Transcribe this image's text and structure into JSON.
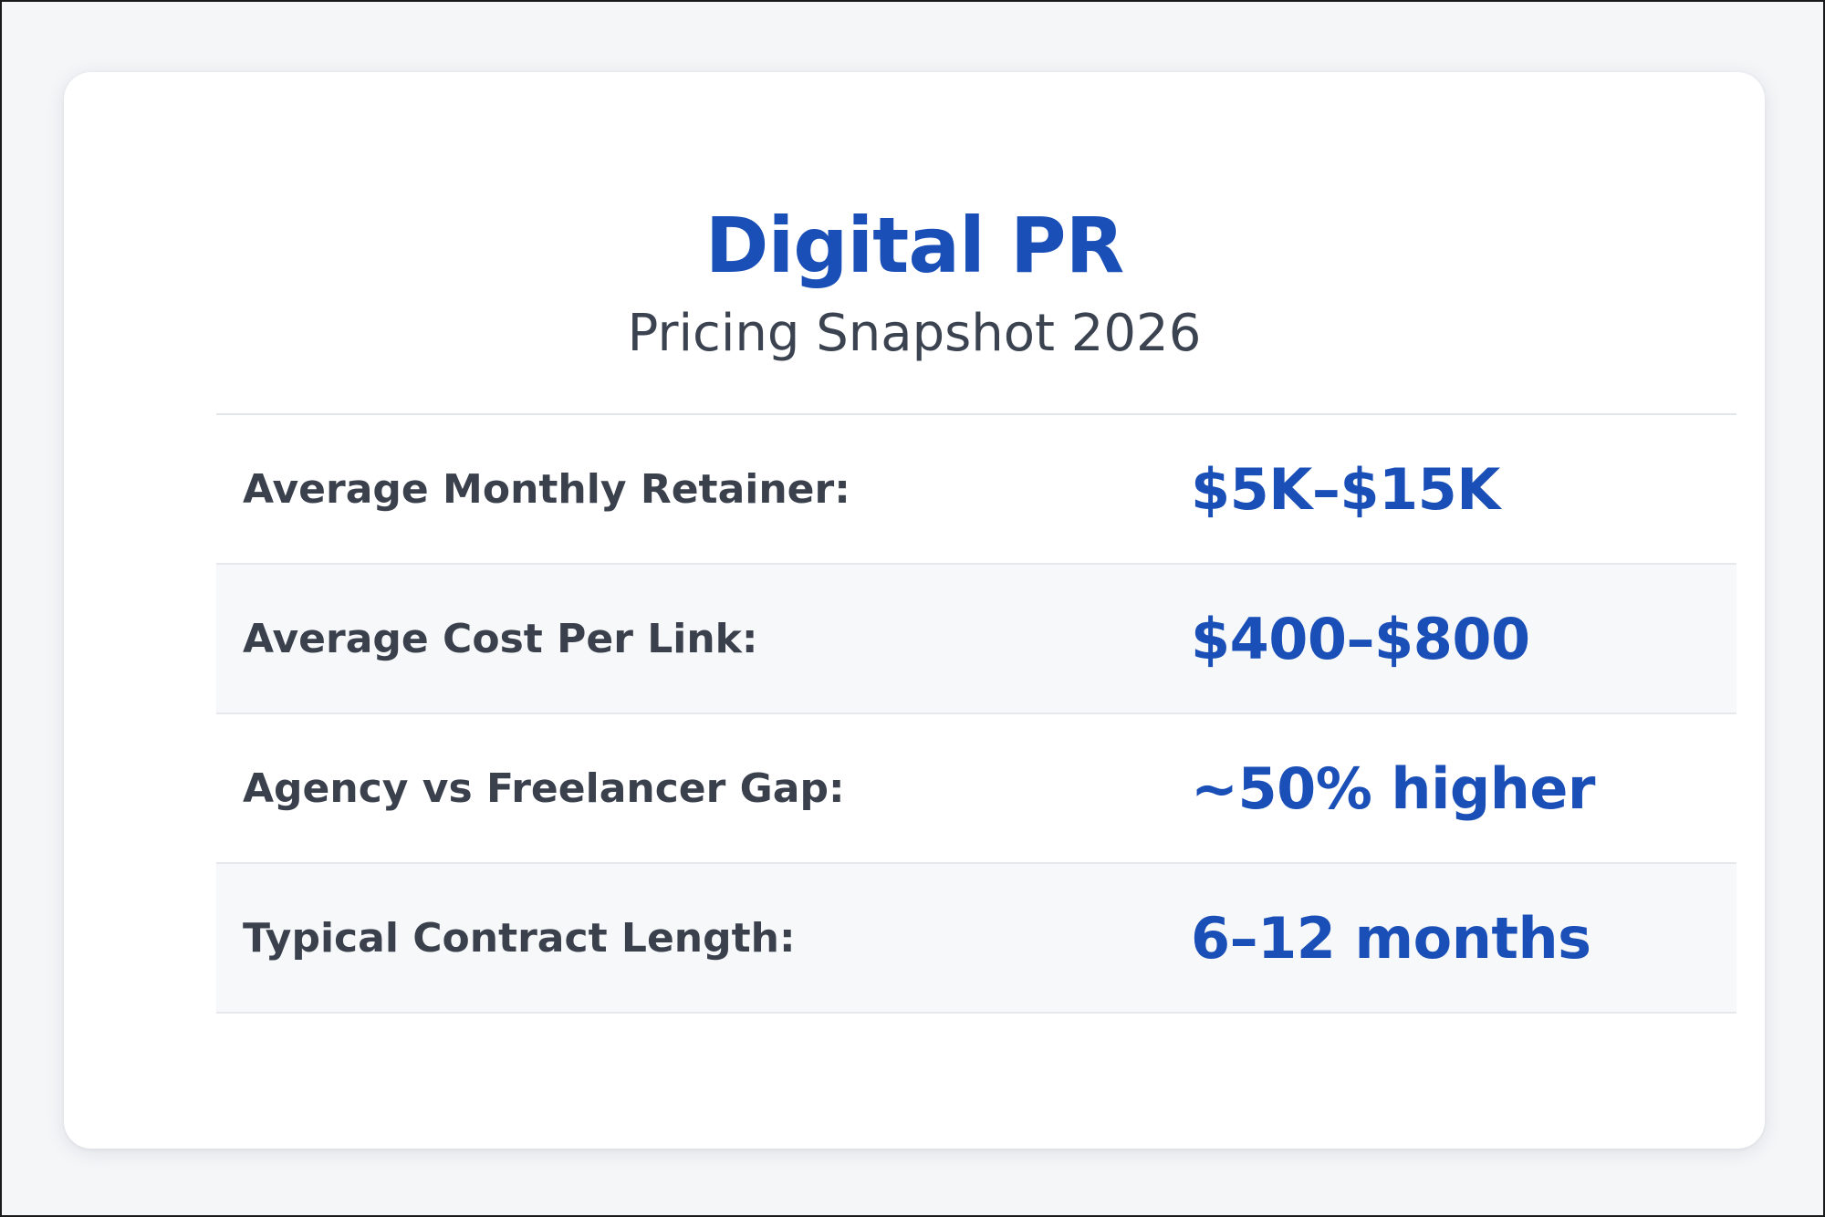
{
  "header": {
    "title": "Digital PR",
    "subtitle": "Pricing Snapshot 2026"
  },
  "rows": [
    {
      "label": "Average Monthly Retainer:",
      "value": "$5K–$15K"
    },
    {
      "label": "Average Cost Per Link:",
      "value": "$400–$800"
    },
    {
      "label": "Agency vs Freelancer Gap:",
      "value": "~50% higher"
    },
    {
      "label": "Typical Contract Length:",
      "value": "6–12 months"
    }
  ],
  "colors": {
    "accent": "#1a4fb8",
    "label_text": "#3a414d",
    "alt_row_background": "#f7f8fa",
    "card_background": "#ffffff"
  }
}
